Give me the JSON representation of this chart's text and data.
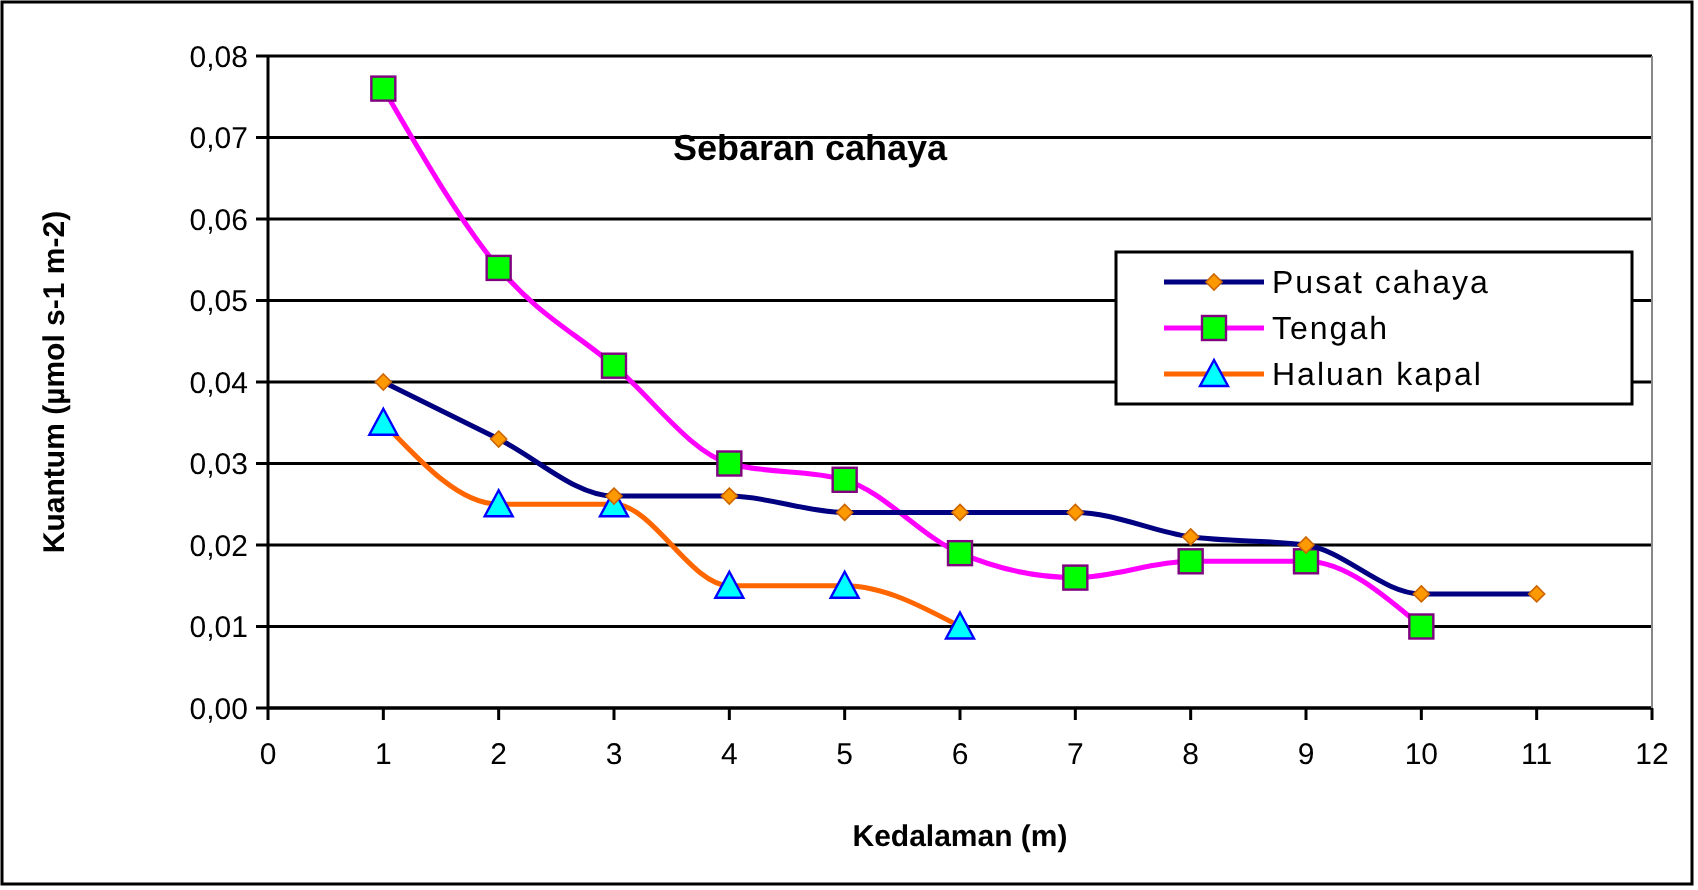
{
  "chart_data": {
    "type": "line",
    "title": "Sebaran cahaya",
    "xlabel": "Kedalaman (m)",
    "ylabel": "Kuantum (µmol s-1 m-2)",
    "x": [
      1,
      2,
      3,
      4,
      5,
      6,
      7,
      8,
      9,
      10,
      11
    ],
    "series": [
      {
        "name": "Pusat cahaya",
        "color": "#000080",
        "marker": "diamond",
        "values": [
          0.04,
          0.033,
          0.026,
          0.026,
          0.024,
          0.024,
          0.024,
          0.021,
          0.02,
          0.014,
          0.014
        ]
      },
      {
        "name": "Tengah",
        "color": "#ff00ff",
        "marker": "square",
        "values": [
          0.076,
          0.054,
          0.042,
          0.03,
          0.028,
          0.019,
          0.016,
          0.018,
          0.018,
          0.01,
          null
        ]
      },
      {
        "name": "Haluan kapal",
        "color": "#ff6600",
        "marker": "triangle",
        "values": [
          0.035,
          0.025,
          0.025,
          0.015,
          0.015,
          0.01,
          null,
          null,
          null,
          null,
          null
        ]
      }
    ],
    "xlim": [
      0,
      12
    ],
    "xticks": [
      0,
      1,
      2,
      3,
      4,
      5,
      6,
      7,
      8,
      9,
      10,
      11,
      12
    ],
    "ylim": [
      0,
      0.08
    ],
    "yticks": [
      {
        "value": 0,
        "label": "0,00"
      },
      {
        "value": 0.01,
        "label": "0,01"
      },
      {
        "value": 0.02,
        "label": "0,02"
      },
      {
        "value": 0.03,
        "label": "0,03"
      },
      {
        "value": 0.04,
        "label": "0,04"
      },
      {
        "value": 0.05,
        "label": "0,05"
      },
      {
        "value": 0.06,
        "label": "0,06"
      },
      {
        "value": 0.07,
        "label": "0,07"
      },
      {
        "value": 0.08,
        "label": "0,08"
      }
    ],
    "grid": "y",
    "legend": "top right"
  }
}
